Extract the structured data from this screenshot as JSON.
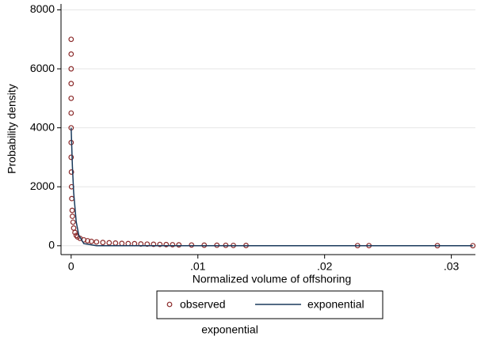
{
  "chart_data": {
    "type": "scatter",
    "x_label": "Normalized volume of offshoring",
    "y_label": "Probability density",
    "note": "exponential",
    "legend": "bottom",
    "grid": true,
    "xlim": [
      -0.0008,
      0.0319
    ],
    "ylim": [
      -300,
      8200
    ],
    "xticks": [
      0,
      {
        "value": 0.01,
        "label": ".01"
      },
      {
        "value": 0.02,
        "label": ".02"
      },
      {
        "value": 0.03,
        "label": ".03"
      }
    ],
    "yticks": [
      0,
      2000,
      4000,
      6000,
      8000
    ],
    "series": [
      {
        "name": "observed",
        "type": "scatter",
        "color": "#8b2a2a",
        "x": [
          0,
          0,
          0,
          0,
          0,
          0,
          0,
          0,
          0,
          2e-05,
          3e-05,
          5e-05,
          8e-05,
          0.0001,
          0.00015,
          0.0002,
          0.0003,
          0.0004,
          0.0005,
          0.0007,
          0.001,
          0.0013,
          0.0016,
          0.002,
          0.0025,
          0.003,
          0.0035,
          0.004,
          0.0045,
          0.005,
          0.0055,
          0.006,
          0.0065,
          0.007,
          0.0075,
          0.008,
          0.0085,
          0.0095,
          0.0105,
          0.0115,
          0.0122,
          0.0128,
          0.0138,
          0.0226,
          0.0235,
          0.0289,
          0.0317
        ],
        "y": [
          7000,
          6500,
          6000,
          5500,
          5000,
          4500,
          4000,
          3500,
          3000,
          2500,
          2000,
          1600,
          1200,
          1000,
          800,
          600,
          450,
          350,
          300,
          250,
          200,
          170,
          150,
          130,
          110,
          100,
          90,
          80,
          75,
          70,
          60,
          55,
          50,
          45,
          40,
          35,
          30,
          25,
          20,
          18,
          15,
          12,
          10,
          5,
          5,
          3,
          2
        ]
      },
      {
        "name": "exponential",
        "type": "line",
        "color": "#1a3a5c",
        "x": [
          0,
          0.0001,
          0.0002,
          0.0004,
          0.0006,
          0.001,
          0.002,
          0.005,
          0.01,
          0.02,
          0.0317
        ],
        "y": [
          4000,
          2681,
          1797,
          808,
          363,
          73,
          1.3,
          0,
          0,
          0,
          0
        ]
      }
    ]
  }
}
